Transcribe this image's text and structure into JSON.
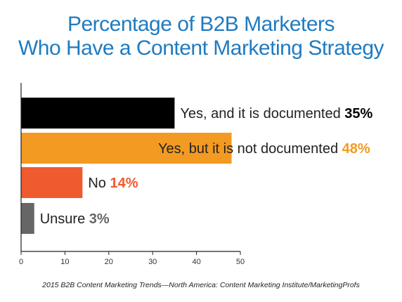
{
  "title_line1": "Percentage of B2B Marketers",
  "title_line2": "Who Have a Content Marketing Strategy",
  "source": "2015 B2B Content Marketing Trends—North America: Content Marketing Institute/MarketingProfs",
  "chart_data": {
    "type": "bar",
    "orientation": "horizontal",
    "categories": [
      "Yes, and it is documented",
      "Yes, but it is not documented",
      "No",
      "Unsure"
    ],
    "values": [
      35,
      48,
      14,
      3
    ],
    "value_labels": [
      "35%",
      "48%",
      "14%",
      "3%"
    ],
    "colors": [
      "#000000",
      "#f39a22",
      "#ef5a2f",
      "#666666"
    ],
    "value_colors": [
      "#000000",
      "#f39a22",
      "#ef5a2f",
      "#666666"
    ],
    "xlim": [
      0,
      50
    ],
    "xticks": [
      0,
      10,
      20,
      30,
      40,
      50
    ],
    "grid": false,
    "legend": "none"
  }
}
